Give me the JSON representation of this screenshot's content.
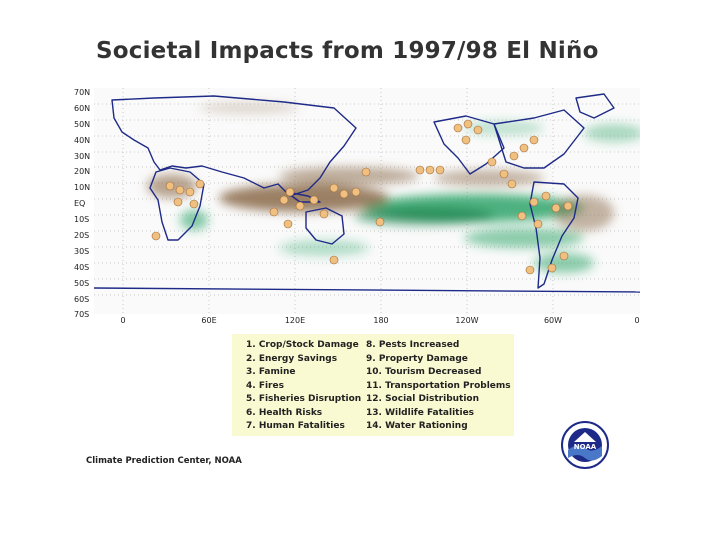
{
  "title": "Societal Impacts from 1997/98 El Niño",
  "map": {
    "lat_labels": [
      "70N",
      "60N",
      "50N",
      "40N",
      "30N",
      "20N",
      "10N",
      "EQ",
      "10S",
      "20S",
      "30S",
      "40S",
      "50S",
      "60S",
      "70S"
    ],
    "lon_labels": [
      "0",
      "60E",
      "120E",
      "180",
      "120W",
      "60W",
      "0"
    ],
    "colors": {
      "wet": "#2fa56a",
      "dry": "#8b6b4a",
      "coast": "#1e2a88",
      "marker": "#f0c080"
    }
  },
  "legend": {
    "left": [
      "1. Crop/Stock Damage",
      "2. Energy Savings",
      "3. Famine",
      "4. Fires",
      "5. Fisheries Disruption",
      "6. Health Risks",
      "7. Human Fatalities"
    ],
    "right": [
      "8. Pests Increased",
      "9. Property Damage",
      "10. Tourism Decreased",
      "11. Transportation Problems",
      "12. Social Distribution",
      "13. Wildlife Fatalities",
      "14. Water Rationing"
    ]
  },
  "credit": "Climate Prediction Center, NOAA",
  "logo_text": "NOAA"
}
